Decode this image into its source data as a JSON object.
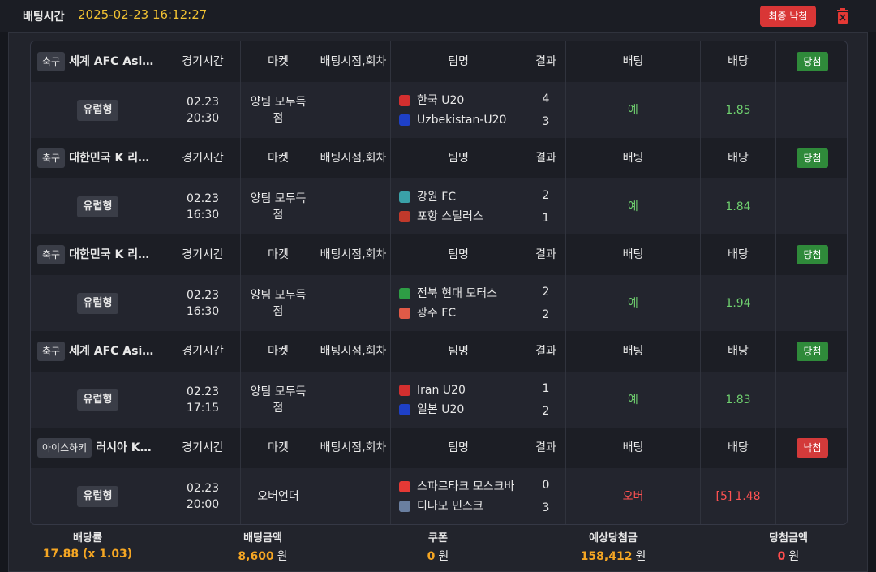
{
  "header": {
    "label": "배팅시간",
    "datetime": "2025-02-23 16:12:27",
    "button": "최종 낙첨"
  },
  "columns": [
    "경기시간",
    "마켓",
    "배팅시점,회차",
    "팀명",
    "결과",
    "배팅",
    "배당"
  ],
  "bets": [
    {
      "sport": "축구",
      "league": "세계 AFC Asi…",
      "status": "당첨",
      "type": "유럽형",
      "date": "02.23",
      "time": "20:30",
      "market": "양팀 모두득점",
      "teams": [
        "한국 U20",
        "Uzbekistan-U20"
      ],
      "scores": [
        4,
        3
      ],
      "pick": "예",
      "odds": 1.85
    },
    {
      "sport": "축구",
      "league": "대한민국 K 리…",
      "status": "당첨",
      "type": "유럽형",
      "date": "02.23",
      "time": "16:30",
      "market": "양팀 모두득점",
      "teams": [
        "강원 FC",
        "포항 스틸러스"
      ],
      "scores": [
        2,
        1
      ],
      "pick": "예",
      "odds": 1.84
    },
    {
      "sport": "축구",
      "league": "대한민국 K 리…",
      "status": "당첨",
      "type": "유럽형",
      "date": "02.23",
      "time": "16:30",
      "market": "양팀 모두득점",
      "teams": [
        "전북 현대 모터스",
        "광주 FC"
      ],
      "scores": [
        2,
        2
      ],
      "pick": "예",
      "odds": 1.94
    },
    {
      "sport": "축구",
      "league": "세계 AFC Asi…",
      "status": "당첨",
      "type": "유럽형",
      "date": "02.23",
      "time": "17:15",
      "market": "양팀 모두득점",
      "teams": [
        "Iran U20",
        "일본 U20"
      ],
      "scores": [
        1,
        2
      ],
      "pick": "예",
      "odds": 1.83
    },
    {
      "sport": "아이스하키",
      "league": "러시아 K…",
      "status": "낙첨",
      "type": "유럽형",
      "date": "02.23",
      "time": "20:00",
      "market": "오버언더",
      "teams": [
        "스파르타크 모스크바",
        "디나모 민스크"
      ],
      "scores": [
        0,
        3
      ],
      "pick": "오버",
      "odds_prefix": "[5]",
      "odds": 1.48
    }
  ],
  "footer": [
    {
      "label": "배당률",
      "value": "17.88 (x 1.03)"
    },
    {
      "label": "배팅금액",
      "value": "8,600",
      "unit": "원"
    },
    {
      "label": "쿠폰",
      "value": "0",
      "unit": "원"
    },
    {
      "label": "예상당첨금",
      "value": "158,412",
      "unit": "원"
    },
    {
      "label": "당첨금액",
      "value": "0",
      "unit": "원"
    }
  ]
}
